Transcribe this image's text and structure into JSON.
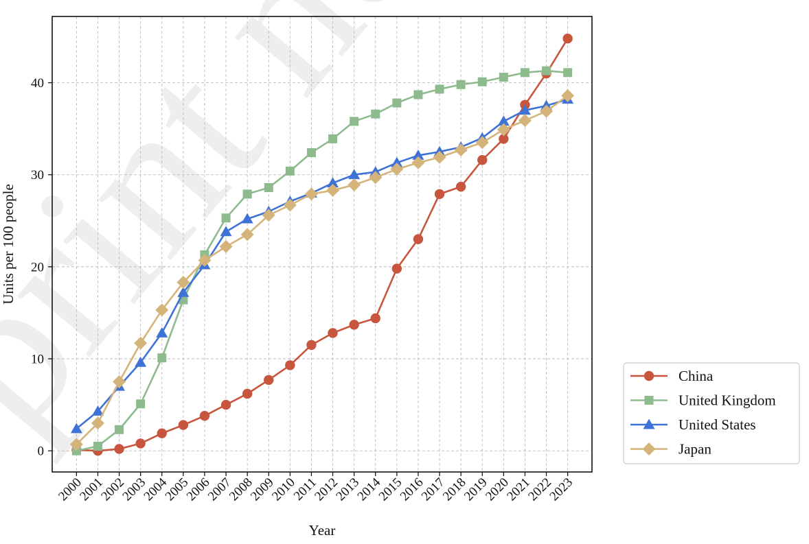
{
  "chart_data": {
    "type": "line",
    "title": "",
    "xlabel": "Year",
    "ylabel": "Units per 100 people",
    "watermark": "print no",
    "x": [
      2000,
      2001,
      2002,
      2003,
      2004,
      2005,
      2006,
      2007,
      2008,
      2009,
      2010,
      2011,
      2012,
      2013,
      2014,
      2015,
      2016,
      2017,
      2018,
      2019,
      2020,
      2021,
      2022,
      2023
    ],
    "ylim": [
      -2.3,
      47.2
    ],
    "yticks": [
      0,
      10,
      20,
      30,
      40
    ],
    "grid": true,
    "legend_position": "outside-bottom-right",
    "series": [
      {
        "name": "China",
        "color": "#C8553D",
        "marker": "circle",
        "values": [
          0.1,
          0.0,
          0.2,
          0.8,
          1.9,
          2.8,
          3.8,
          5.0,
          6.2,
          7.7,
          9.3,
          11.5,
          12.8,
          13.7,
          14.4,
          19.8,
          23.0,
          27.9,
          28.7,
          31.6,
          33.9,
          37.6,
          41.0,
          44.8
        ]
      },
      {
        "name": "United Kingdom",
        "color": "#8DBB8E",
        "marker": "square",
        "values": [
          0.0,
          0.5,
          2.3,
          5.1,
          10.1,
          16.4,
          21.3,
          25.3,
          27.9,
          28.6,
          30.4,
          32.4,
          33.9,
          35.8,
          36.6,
          37.8,
          38.7,
          39.3,
          39.8,
          40.1,
          40.6,
          41.1,
          41.3,
          41.1
        ]
      },
      {
        "name": "United States",
        "color": "#3F72D6",
        "marker": "triangle",
        "values": [
          2.4,
          4.3,
          7.0,
          9.6,
          12.8,
          17.2,
          20.2,
          23.8,
          25.2,
          26.0,
          27.1,
          28.0,
          29.1,
          30.0,
          30.3,
          31.3,
          32.1,
          32.5,
          33.0,
          34.0,
          35.8,
          37.0,
          37.5,
          38.2
        ]
      },
      {
        "name": "Japan",
        "color": "#D4B47A",
        "marker": "diamond",
        "values": [
          0.7,
          3.0,
          7.5,
          11.7,
          15.3,
          18.3,
          20.7,
          22.2,
          23.5,
          25.6,
          26.7,
          27.9,
          28.3,
          28.9,
          29.7,
          30.6,
          31.3,
          31.9,
          32.7,
          33.5,
          34.9,
          35.9,
          36.9,
          38.6
        ]
      }
    ]
  }
}
